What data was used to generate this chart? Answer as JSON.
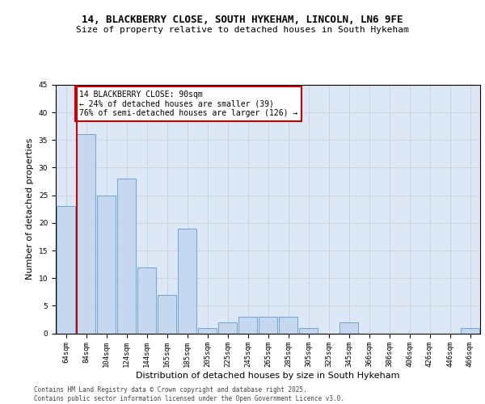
{
  "title_line1": "14, BLACKBERRY CLOSE, SOUTH HYKEHAM, LINCOLN, LN6 9FE",
  "title_line2": "Size of property relative to detached houses in South Hykeham",
  "xlabel": "Distribution of detached houses by size in South Hykeham",
  "ylabel": "Number of detached properties",
  "categories": [
    "64sqm",
    "84sqm",
    "104sqm",
    "124sqm",
    "144sqm",
    "165sqm",
    "185sqm",
    "205sqm",
    "225sqm",
    "245sqm",
    "265sqm",
    "285sqm",
    "305sqm",
    "325sqm",
    "345sqm",
    "366sqm",
    "386sqm",
    "406sqm",
    "426sqm",
    "446sqm",
    "466sqm"
  ],
  "values": [
    23,
    36,
    25,
    28,
    12,
    7,
    19,
    1,
    2,
    3,
    3,
    3,
    1,
    0,
    2,
    0,
    0,
    0,
    0,
    0,
    1
  ],
  "bar_color": "#c5d8f0",
  "bar_edge_color": "#5b9bd5",
  "red_line_index": 1,
  "annotation_text": "14 BLACKBERRY CLOSE: 90sqm\n← 24% of detached houses are smaller (39)\n76% of semi-detached houses are larger (126) →",
  "annotation_box_color": "#ffffff",
  "annotation_box_edge": "#cc0000",
  "vline_color": "#cc0000",
  "ylim": [
    0,
    45
  ],
  "yticks": [
    0,
    5,
    10,
    15,
    20,
    25,
    30,
    35,
    40,
    45
  ],
  "grid_color": "#cccccc",
  "bg_color": "#dce8f5",
  "footer_text": "Contains HM Land Registry data © Crown copyright and database right 2025.\nContains public sector information licensed under the Open Government Licence v3.0.",
  "title_fontsize": 9,
  "subtitle_fontsize": 8,
  "axis_label_fontsize": 8,
  "tick_fontsize": 6.5,
  "annotation_fontsize": 7,
  "footer_fontsize": 5.5
}
